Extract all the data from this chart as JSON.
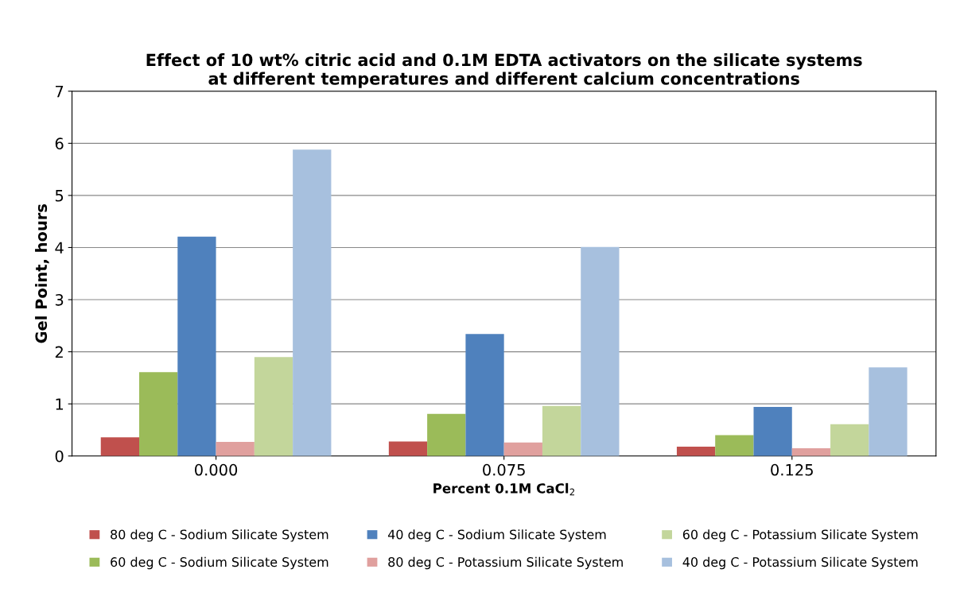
{
  "chart_data": {
    "type": "bar",
    "title": "Effect of 10 wt% citric acid and 0.1M EDTA activators on the silicate systems\nat different temperatures and different calcium concentrations",
    "xlabel": "Percent 0.1M CaCl$_{2}$",
    "ylabel": "Gel Point, hours",
    "categories": [
      "0.000",
      "0.075",
      "0.125"
    ],
    "series": [
      {
        "name": "80 deg C - Sodium Silicate System",
        "color": "#c0504d",
        "values": [
          0.36,
          0.28,
          0.18
        ]
      },
      {
        "name": "60 deg C - Sodium Silicate System",
        "color": "#9bbb59",
        "values": [
          1.61,
          0.81,
          0.4
        ]
      },
      {
        "name": "40 deg C - Sodium Silicate System",
        "color": "#4f81bd",
        "values": [
          4.21,
          2.34,
          0.94
        ]
      },
      {
        "name": "80 deg C - Potassium Silicate System",
        "color": "#e0a09e",
        "values": [
          0.27,
          0.26,
          0.15
        ]
      },
      {
        "name": "60 deg C - Potassium Silicate System",
        "color": "#c3d69b",
        "values": [
          1.9,
          0.96,
          0.61
        ]
      },
      {
        "name": "40 deg C - Potassium Silicate System",
        "color": "#a7c0de",
        "values": [
          5.88,
          4.01,
          1.7
        ]
      }
    ],
    "ylim": [
      0,
      7
    ],
    "yticks": [
      0,
      1,
      2,
      3,
      4,
      5,
      6,
      7
    ],
    "grid": "y",
    "legend": "bottom"
  }
}
